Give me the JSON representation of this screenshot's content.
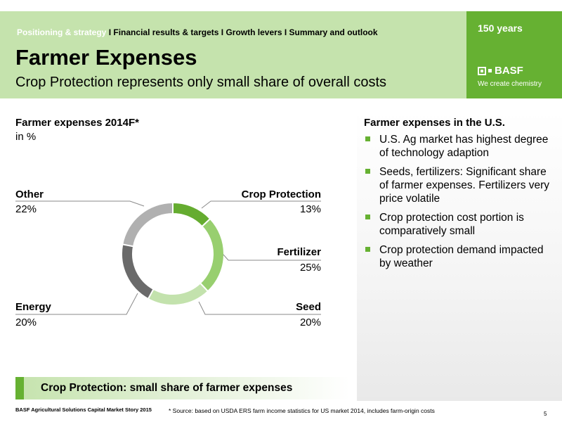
{
  "header": {
    "nav": {
      "active": "Positioning & strategy",
      "items": [
        "Financial results & targets",
        "Growth levers",
        "Summary and outlook"
      ],
      "separator": "I"
    },
    "title": "Farmer Expenses",
    "subtitle": "Crop Protection represents only small share of overall costs",
    "badge": "150 years",
    "logo_text": "BASF",
    "tagline": "We create chemistry"
  },
  "chart_data": {
    "type": "pie",
    "style": "donut",
    "title": "Farmer expenses 2014F*",
    "unit_label": "in %",
    "categories": [
      "Crop Protection",
      "Fertilizer",
      "Seed",
      "Energy",
      "Other"
    ],
    "values": [
      13,
      25,
      20,
      20,
      22
    ],
    "value_labels": [
      "13%",
      "25%",
      "20%",
      "20%",
      "22%"
    ],
    "colors": [
      "#65ac30",
      "#98cf6f",
      "#c3e2ad",
      "#6a6a6a",
      "#b0b0b0"
    ]
  },
  "right_panel": {
    "title": "Farmer expenses in the U.S.",
    "bullets": [
      "U.S. Ag market has highest degree of technology adaption",
      "Seeds, fertilizers: Significant share of farmer expenses. Fertilizers very price volatile",
      "Crop protection cost portion is comparatively small",
      "Crop protection demand impacted by weather"
    ],
    "accent": "#66b132"
  },
  "highlight": "Crop Protection: small share of farmer expenses",
  "footer": {
    "left": "BASF Agricultural Solutions Capital Market Story 2015",
    "note": "* Source: based on USDA ERS farm income statistics for US market 2014, includes farm-origin costs",
    "page": "5"
  }
}
